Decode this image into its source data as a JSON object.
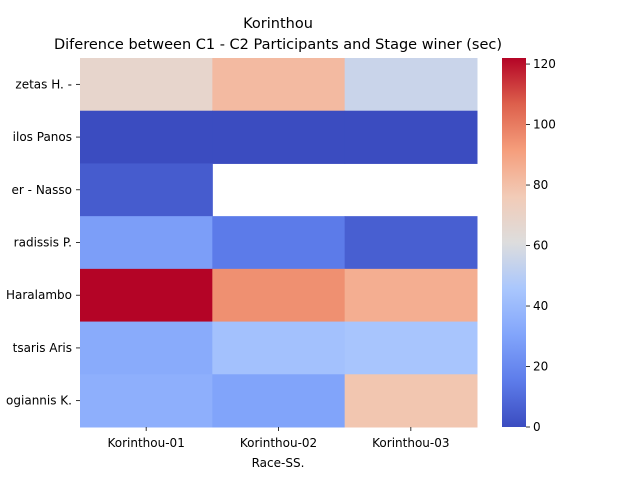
{
  "chart_data": {
    "type": "heatmap",
    "title": "Korinthou",
    "subtitle": "Diference between C1 - C2 Participants and Stage winer (sec)",
    "xlabel": "Race-SS.",
    "ylabel": "",
    "x": [
      "Korinthou-01",
      "Korinthou-02",
      "Korinthou-03"
    ],
    "y": [
      "zetas H.  -",
      "ilos Panos",
      "er  - Nasso",
      "radissis P.",
      "Haralambo",
      "tsaris Aris",
      "ogiannis K."
    ],
    "values": [
      [
        68,
        82,
        55
      ],
      [
        0,
        0,
        0
      ],
      [
        5,
        null,
        null
      ],
      [
        28,
        15,
        6
      ],
      [
        122,
        95,
        86
      ],
      [
        33,
        43,
        45
      ],
      [
        35,
        30,
        78
      ]
    ],
    "colormap": "coolwarm",
    "vmin": 0,
    "vmax": 122,
    "colorbar_ticks": [
      0,
      20,
      40,
      60,
      80,
      100,
      120
    ]
  }
}
